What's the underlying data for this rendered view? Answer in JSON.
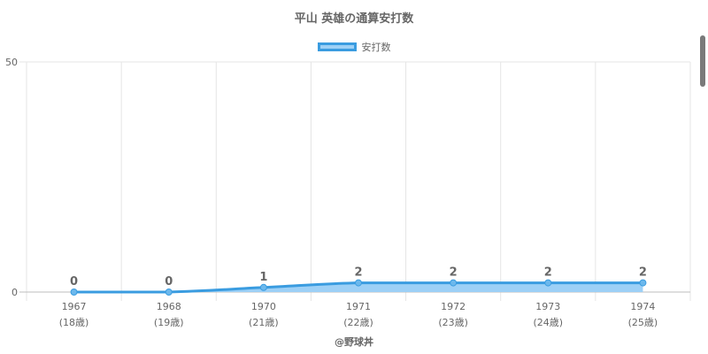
{
  "chart_data": {
    "type": "area",
    "title": "平山 英雄の通算安打数",
    "categories": [
      "1967",
      "1968",
      "1970",
      "1971",
      "1972",
      "1973",
      "1974"
    ],
    "ages": [
      "(18歳)",
      "(19歳)",
      "(21歳)",
      "(22歳)",
      "(23歳)",
      "(24歳)",
      "(25歳)"
    ],
    "series": [
      {
        "name": "安打数",
        "values": [
          0,
          0,
          1,
          2,
          2,
          2,
          2
        ]
      }
    ],
    "ylim": [
      0,
      50
    ],
    "y_ticks": [
      "0",
      "50"
    ],
    "grid": true,
    "legend_position": "top",
    "colors": {
      "line": "#3a9ce0",
      "fill": "#9dd0f6",
      "point": "#6cb8ec"
    }
  },
  "source": "@野球丼"
}
